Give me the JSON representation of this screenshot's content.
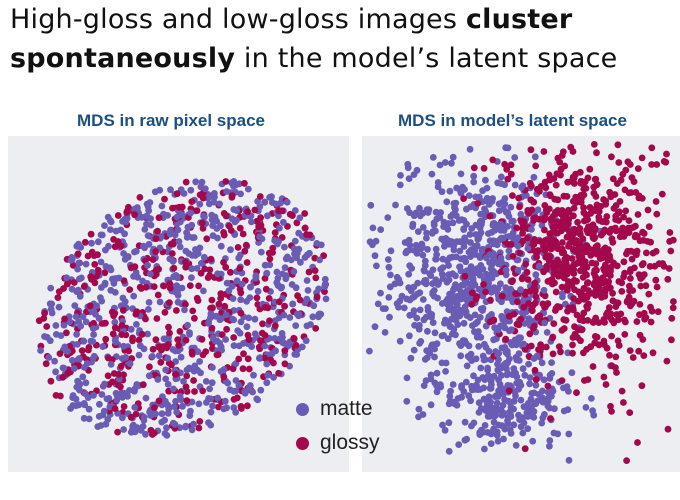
{
  "headline": {
    "line1_plain": "High-gloss and low-gloss images ",
    "line1_bold": "cluster",
    "line2_bold": "spontaneously",
    "line2_plain": " in the model’s latent space"
  },
  "panels": {
    "left": {
      "title": "MDS in raw pixel space"
    },
    "right": {
      "title": "MDS in model’s latent space"
    }
  },
  "legend": {
    "matte": {
      "label": "matte",
      "color": "#6a5cb4"
    },
    "glossy": {
      "label": "glossy",
      "color": "#a4084c"
    }
  },
  "panel_background": "#eceef2"
}
